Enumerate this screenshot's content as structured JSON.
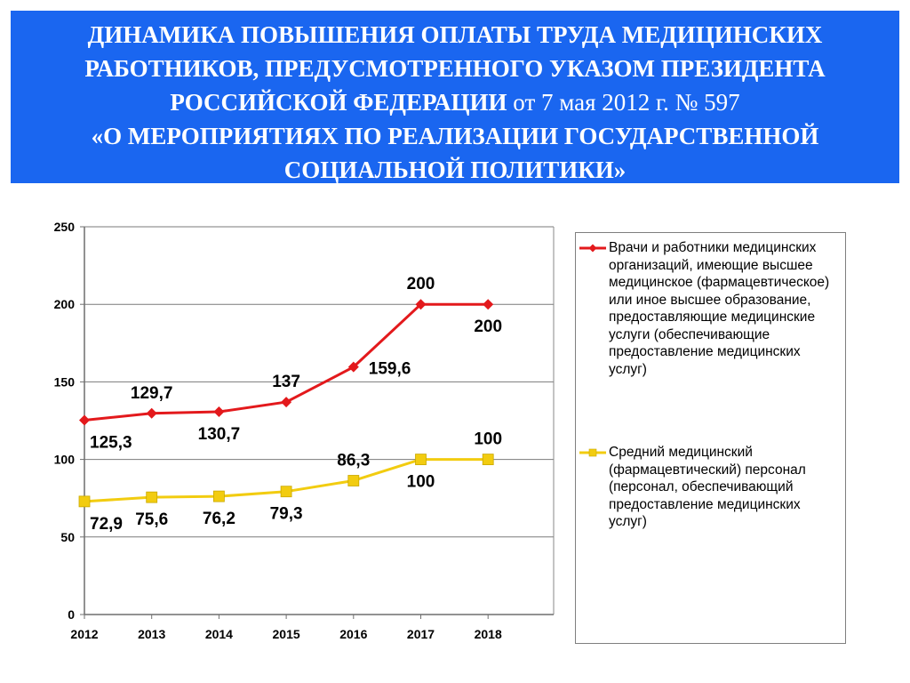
{
  "title": {
    "line1": "ДИНАМИКА ПОВЫШЕНИЯ  ОПЛАТЫ ТРУДА МЕДИЦИНСКИХ",
    "line2": "РАБОТНИКОВ, ПРЕДУСМОТРЕННОГО  УКАЗОМ ПРЕЗИДЕНТА",
    "line3_bold": "РОССИЙСКОЙ ФЕДЕРАЦИИ",
    "line3_plain": "  от 7 мая 2012 г. № 597",
    "line4": "«О МЕРОПРИЯТИЯХ ПО РЕАЛИЗАЦИИ ГОСУДАРСТВЕННОЙ",
    "line5": "СОЦИАЛЬНОЙ ПОЛИТИКИ»"
  },
  "chart_data": {
    "type": "line",
    "categories": [
      "2012",
      "2013",
      "2014",
      "2015",
      "2016",
      "2017",
      "2018"
    ],
    "ylim": [
      0,
      250
    ],
    "yticks": [
      0,
      50,
      100,
      150,
      200,
      250
    ],
    "grid": true,
    "legend_position": "right",
    "series": [
      {
        "name": "Врачи и работники медицинских организаций, имеющие высшее медицинское (фармацевтическое) или иное высшее образование, предоставляющие медицинские услуги (обеспечивающие предоставление медицинских услуг)",
        "color": "#e3191c",
        "marker": "diamond",
        "values": [
          125.3,
          129.7,
          130.7,
          137,
          159.6,
          200,
          200
        ],
        "labels": [
          "125,3",
          "129,7",
          "130,7",
          "137",
          "159,6",
          "200",
          "200"
        ],
        "label_side": [
          "below",
          "above",
          "below",
          "above",
          "right",
          "above",
          "below"
        ]
      },
      {
        "name": "Средний медицинский (фармацевтический) персонал (персонал, обеспечивающий предоставление медицинских услуг)",
        "color": "#f2cc10",
        "marker": "square",
        "values": [
          72.9,
          75.6,
          76.2,
          79.3,
          86.3,
          100,
          100
        ],
        "labels": [
          "72,9",
          "75,6",
          "76,2",
          "79,3",
          "86,3",
          "100",
          "100"
        ],
        "label_side": [
          "below",
          "below",
          "below",
          "below",
          "above",
          "below",
          "above"
        ]
      }
    ]
  }
}
